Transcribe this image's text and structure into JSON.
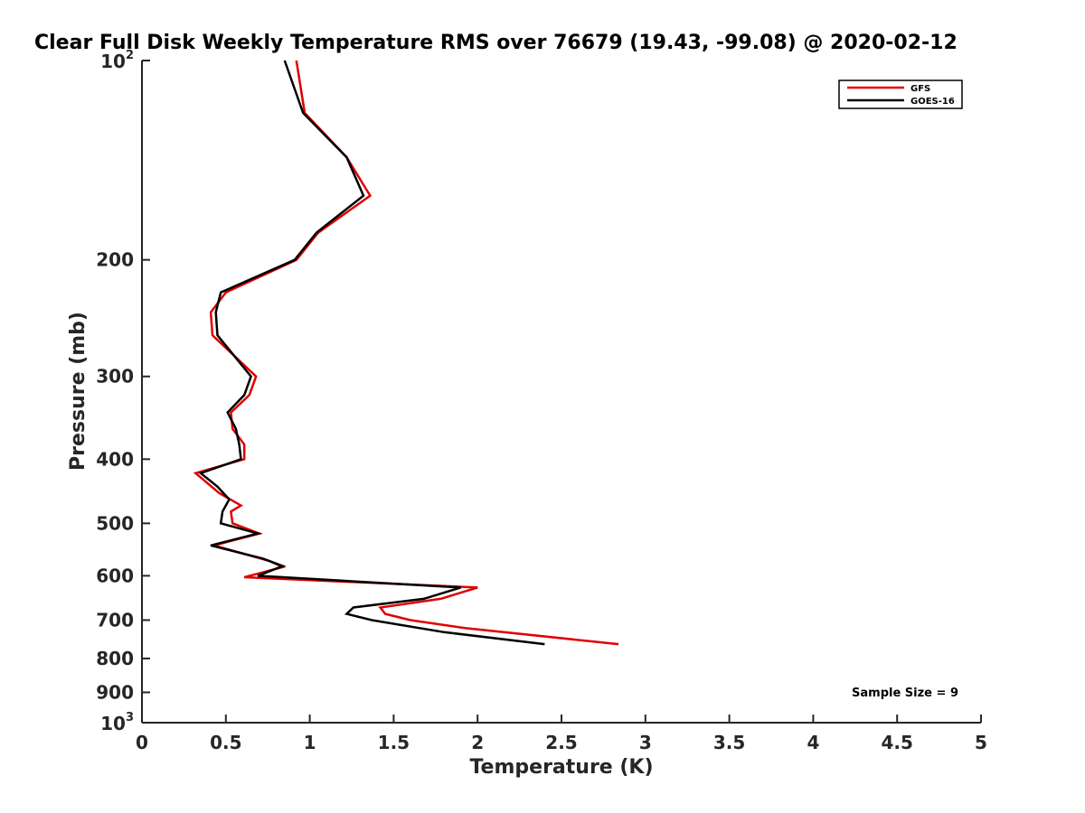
{
  "chart_data": {
    "type": "line",
    "title": "Clear Full Disk Weekly Temperature RMS over 76679 (19.43, -99.08) @ 2020-02-12",
    "xlabel": "Temperature (K)",
    "ylabel": "Pressure (mb)",
    "xlim": [
      0,
      5
    ],
    "ylim": [
      100,
      1000
    ],
    "y_scale": "log",
    "y_reversed": true,
    "x_ticks": [
      "0",
      "0.5",
      "1",
      "1.5",
      "2",
      "2.5",
      "3",
      "3.5",
      "4",
      "4.5",
      "5"
    ],
    "y_ticks": [
      {
        "value": 100,
        "base": "10",
        "exp": "2"
      },
      {
        "value": 200,
        "label": "200"
      },
      {
        "value": 300,
        "label": "300"
      },
      {
        "value": 400,
        "label": "400"
      },
      {
        "value": 500,
        "label": "500"
      },
      {
        "value": 600,
        "label": "600"
      },
      {
        "value": 700,
        "label": "700"
      },
      {
        "value": 800,
        "label": "800"
      },
      {
        "value": 900,
        "label": "900"
      },
      {
        "value": 1000,
        "base": "10",
        "exp": "3"
      }
    ],
    "legend_position": "top-right",
    "series": [
      {
        "name": "GFS",
        "color": "#e00000",
        "points": [
          [
            0.92,
            100
          ],
          [
            0.97,
            120
          ],
          [
            1.22,
            140
          ],
          [
            1.36,
            160
          ],
          [
            1.05,
            182
          ],
          [
            0.92,
            200
          ],
          [
            0.5,
            224
          ],
          [
            0.41,
            240
          ],
          [
            0.42,
            260
          ],
          [
            0.68,
            300
          ],
          [
            0.64,
            320
          ],
          [
            0.53,
            340
          ],
          [
            0.54,
            360
          ],
          [
            0.61,
            380
          ],
          [
            0.61,
            400
          ],
          [
            0.32,
            420
          ],
          [
            0.46,
            450
          ],
          [
            0.59,
            470
          ],
          [
            0.53,
            480
          ],
          [
            0.54,
            500
          ],
          [
            0.7,
            518
          ],
          [
            0.43,
            540
          ],
          [
            0.76,
            570
          ],
          [
            0.84,
            582
          ],
          [
            0.61,
            603
          ],
          [
            2.0,
            625
          ],
          [
            1.78,
            650
          ],
          [
            1.42,
            670
          ],
          [
            1.45,
            685
          ],
          [
            1.6,
            700
          ],
          [
            1.93,
            720
          ],
          [
            2.84,
            761
          ]
        ]
      },
      {
        "name": "GOES-16",
        "color": "#000000",
        "points": [
          [
            0.85,
            100
          ],
          [
            0.96,
            120
          ],
          [
            1.22,
            140
          ],
          [
            1.32,
            160
          ],
          [
            1.04,
            182
          ],
          [
            0.91,
            200
          ],
          [
            0.47,
            224
          ],
          [
            0.44,
            240
          ],
          [
            0.45,
            260
          ],
          [
            0.65,
            300
          ],
          [
            0.61,
            320
          ],
          [
            0.51,
            340
          ],
          [
            0.56,
            360
          ],
          [
            0.58,
            380
          ],
          [
            0.59,
            400
          ],
          [
            0.35,
            420
          ],
          [
            0.45,
            440
          ],
          [
            0.52,
            460
          ],
          [
            0.48,
            480
          ],
          [
            0.47,
            500
          ],
          [
            0.69,
            518
          ],
          [
            0.41,
            540
          ],
          [
            0.72,
            565
          ],
          [
            0.84,
            580
          ],
          [
            0.69,
            600
          ],
          [
            1.9,
            625
          ],
          [
            1.68,
            650
          ],
          [
            1.26,
            670
          ],
          [
            1.22,
            685
          ],
          [
            1.37,
            700
          ],
          [
            1.8,
            730
          ],
          [
            2.4,
            761
          ]
        ]
      }
    ],
    "annotation": "Sample Size = 9"
  }
}
